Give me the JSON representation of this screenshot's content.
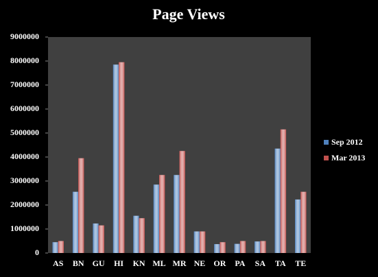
{
  "chart_data": {
    "type": "bar",
    "title": "Page Views",
    "categories": [
      "AS",
      "BN",
      "GU",
      "HI",
      "KN",
      "ML",
      "MR",
      "NE",
      "OR",
      "PA",
      "SA",
      "TA",
      "TE"
    ],
    "series": [
      {
        "name": "Sep 2012",
        "color": "#4f81bd",
        "values": [
          450000,
          2550000,
          1230000,
          7850000,
          1550000,
          2850000,
          3250000,
          900000,
          370000,
          380000,
          480000,
          4350000,
          2230000
        ]
      },
      {
        "name": "Mar 2013",
        "color": "#c0504d",
        "values": [
          500000,
          3950000,
          1150000,
          7950000,
          1450000,
          3250000,
          4250000,
          900000,
          450000,
          500000,
          500000,
          5150000,
          2550000
        ]
      }
    ],
    "ylim": [
      0,
      9000000
    ],
    "yticks": [
      0,
      1000000,
      2000000,
      3000000,
      4000000,
      5000000,
      6000000,
      7000000,
      8000000,
      9000000
    ],
    "legend": "right"
  }
}
